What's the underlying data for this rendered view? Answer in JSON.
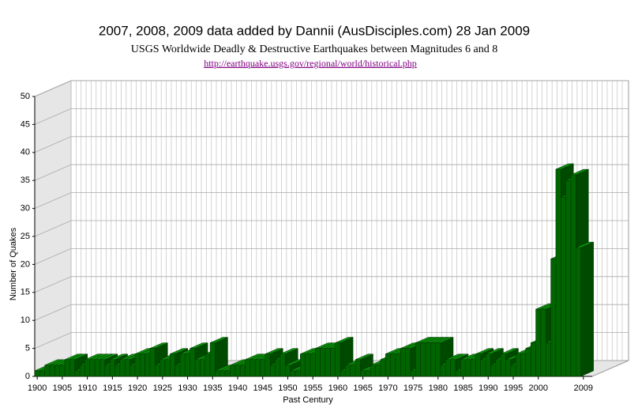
{
  "chart_data": {
    "type": "bar3d",
    "title": "2007, 2008, 2009 data added by Dannii (AusDisciples.com) 28 Jan 2009",
    "subtitle": "USGS Worldwide Deadly & Destructive Earthquakes between Magnitudes 6 and 8",
    "source": "http://earthquake.usgs.gov/regional/world/historical.php",
    "y_label": "Number of Quakes",
    "x_label": "Past Century",
    "color": "#006400",
    "grid": true,
    "ylim": [
      0,
      50
    ],
    "yticks": [
      0,
      5,
      10,
      15,
      20,
      25,
      30,
      35,
      40,
      45,
      50
    ],
    "categories": [
      "1900",
      null,
      null,
      null,
      null,
      "1905",
      null,
      null,
      null,
      null,
      "1910",
      null,
      null,
      null,
      null,
      "1915",
      null,
      null,
      null,
      null,
      "1920",
      null,
      null,
      null,
      null,
      "1925",
      null,
      null,
      null,
      null,
      "1930",
      null,
      null,
      null,
      null,
      "1935",
      null,
      null,
      null,
      null,
      "1940",
      null,
      null,
      null,
      null,
      "1945",
      null,
      null,
      null,
      null,
      "1950",
      null,
      null,
      null,
      null,
      "1955",
      null,
      null,
      null,
      null,
      "1960",
      null,
      null,
      null,
      null,
      "1965",
      null,
      null,
      null,
      null,
      "1970",
      null,
      null,
      null,
      null,
      "1975",
      null,
      null,
      null,
      null,
      "1980",
      null,
      null,
      null,
      null,
      "1985",
      null,
      null,
      null,
      null,
      "1990",
      null,
      null,
      null,
      null,
      "1995",
      null,
      null,
      null,
      null,
      "2000",
      null,
      null,
      null,
      null,
      null,
      null,
      null,
      null,
      "2009"
    ],
    "values": [
      1,
      1,
      2,
      2,
      2,
      2,
      3,
      3,
      1,
      2,
      3,
      3,
      3,
      3,
      2,
      3,
      2,
      3,
      3,
      2,
      4,
      4,
      4,
      5,
      2,
      3,
      3,
      4,
      2,
      4,
      4,
      5,
      3,
      3,
      4,
      6,
      1,
      1,
      1,
      2,
      2,
      2,
      3,
      3,
      3,
      3,
      4,
      2,
      3,
      4,
      2,
      1,
      1,
      4,
      4,
      4,
      5,
      5,
      5,
      5,
      6,
      1,
      2,
      2,
      3,
      1,
      1,
      2,
      2,
      3,
      4,
      4,
      4,
      5,
      5,
      1,
      6,
      6,
      6,
      6,
      6,
      2,
      3,
      3,
      1,
      3,
      3,
      3,
      4,
      3,
      4,
      2,
      3,
      4,
      3,
      2,
      4,
      4,
      5,
      6,
      12,
      12,
      6,
      21,
      37,
      32,
      35,
      36,
      23,
      0
    ]
  }
}
